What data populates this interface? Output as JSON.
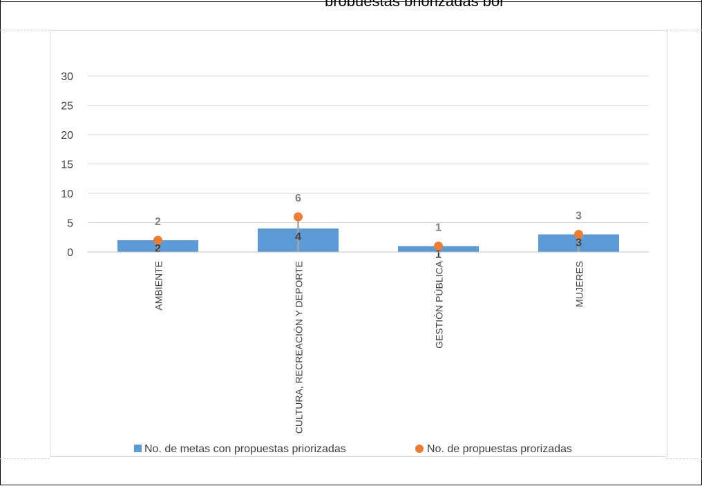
{
  "header": {
    "text": "propuestas priorizadas por"
  },
  "chart_data": {
    "type": "bar",
    "categories": [
      "AMBIENTE",
      "CULTURA, RECREACIÓN Y DEPORTE",
      "GESTIÓN PÚBLICA",
      "MUJERES"
    ],
    "series": [
      {
        "name": "No. de metas con propuestas priorizadas",
        "kind": "bar",
        "color": "#5B9BD5",
        "values": [
          2,
          4,
          1,
          3
        ]
      },
      {
        "name": "No. de propuestas prorizadas",
        "kind": "marker",
        "color": "#ED7D31",
        "values": [
          2,
          6,
          1,
          3
        ]
      }
    ],
    "ylim": [
      0,
      30
    ],
    "yticks": [
      0,
      5,
      10,
      15,
      20,
      25,
      30
    ],
    "grid": true,
    "legend": "bottom",
    "data_labels": true
  }
}
